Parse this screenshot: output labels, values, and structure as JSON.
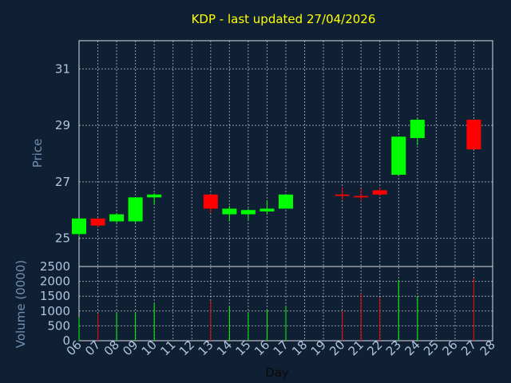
{
  "chart_data": {
    "type": "candlestick",
    "title": "KDP - last updated 27/04/2026",
    "xlabel": "Day",
    "ylabel_price": "Price",
    "ylabel_volume": "Volume (0000)",
    "x_ticks": [
      "06",
      "07",
      "08",
      "09",
      "10",
      "11",
      "12",
      "13",
      "14",
      "15",
      "16",
      "17",
      "18",
      "19",
      "20",
      "21",
      "22",
      "23",
      "24",
      "25",
      "26",
      "27",
      "28"
    ],
    "price_ylim": [
      24,
      32
    ],
    "price_ticks": [
      25,
      27,
      29,
      31
    ],
    "volume_ylim": [
      0,
      2500
    ],
    "volume_ticks": [
      0,
      500,
      1000,
      1500,
      2000,
      2500
    ],
    "grid": true,
    "colors": {
      "background": "#0f2034",
      "title": "#ffff00",
      "axis_text": "#6f8fb0",
      "tick_text": "#b0c4de",
      "up": "#00ff00",
      "down": "#ff0000",
      "grid": "#ffffff"
    },
    "candles": [
      {
        "day": "06",
        "open": 25.15,
        "high": 25.7,
        "low": 25.05,
        "close": 25.7,
        "volume": 800
      },
      {
        "day": "07",
        "open": 25.7,
        "high": 25.7,
        "low": 25.4,
        "close": 25.45,
        "volume": 900
      },
      {
        "day": "08",
        "open": 25.6,
        "high": 25.9,
        "low": 25.55,
        "close": 25.85,
        "volume": 950
      },
      {
        "day": "09",
        "open": 25.6,
        "high": 26.45,
        "low": 25.55,
        "close": 26.45,
        "volume": 950
      },
      {
        "day": "10",
        "open": 26.45,
        "high": 26.6,
        "low": 26.2,
        "close": 26.55,
        "volume": 1250
      },
      {
        "day": "13",
        "open": 26.55,
        "high": 26.55,
        "low": 25.9,
        "close": 26.05,
        "volume": 1350
      },
      {
        "day": "14",
        "open": 25.85,
        "high": 26.15,
        "low": 25.6,
        "close": 26.05,
        "volume": 1150
      },
      {
        "day": "15",
        "open": 25.85,
        "high": 26.05,
        "low": 25.65,
        "close": 26.0,
        "volume": 950
      },
      {
        "day": "16",
        "open": 25.95,
        "high": 26.35,
        "low": 25.85,
        "close": 26.05,
        "volume": 1050
      },
      {
        "day": "17",
        "open": 26.05,
        "high": 26.55,
        "low": 26.05,
        "close": 26.55,
        "volume": 1150
      },
      {
        "day": "20",
        "open": 26.55,
        "high": 26.8,
        "low": 26.35,
        "close": 26.5,
        "volume": 1000
      },
      {
        "day": "21",
        "open": 26.5,
        "high": 26.75,
        "low": 26.3,
        "close": 26.45,
        "volume": 1600
      },
      {
        "day": "22",
        "open": 26.7,
        "high": 26.8,
        "low": 26.5,
        "close": 26.55,
        "volume": 1450
      },
      {
        "day": "23",
        "open": 27.25,
        "high": 28.6,
        "low": 27.25,
        "close": 28.6,
        "volume": 2050
      },
      {
        "day": "24",
        "open": 28.55,
        "high": 29.25,
        "low": 28.3,
        "close": 29.2,
        "volume": 1500
      },
      {
        "day": "27",
        "open": 29.2,
        "high": 29.2,
        "low": 28.15,
        "close": 28.15,
        "volume": 2100
      }
    ]
  }
}
